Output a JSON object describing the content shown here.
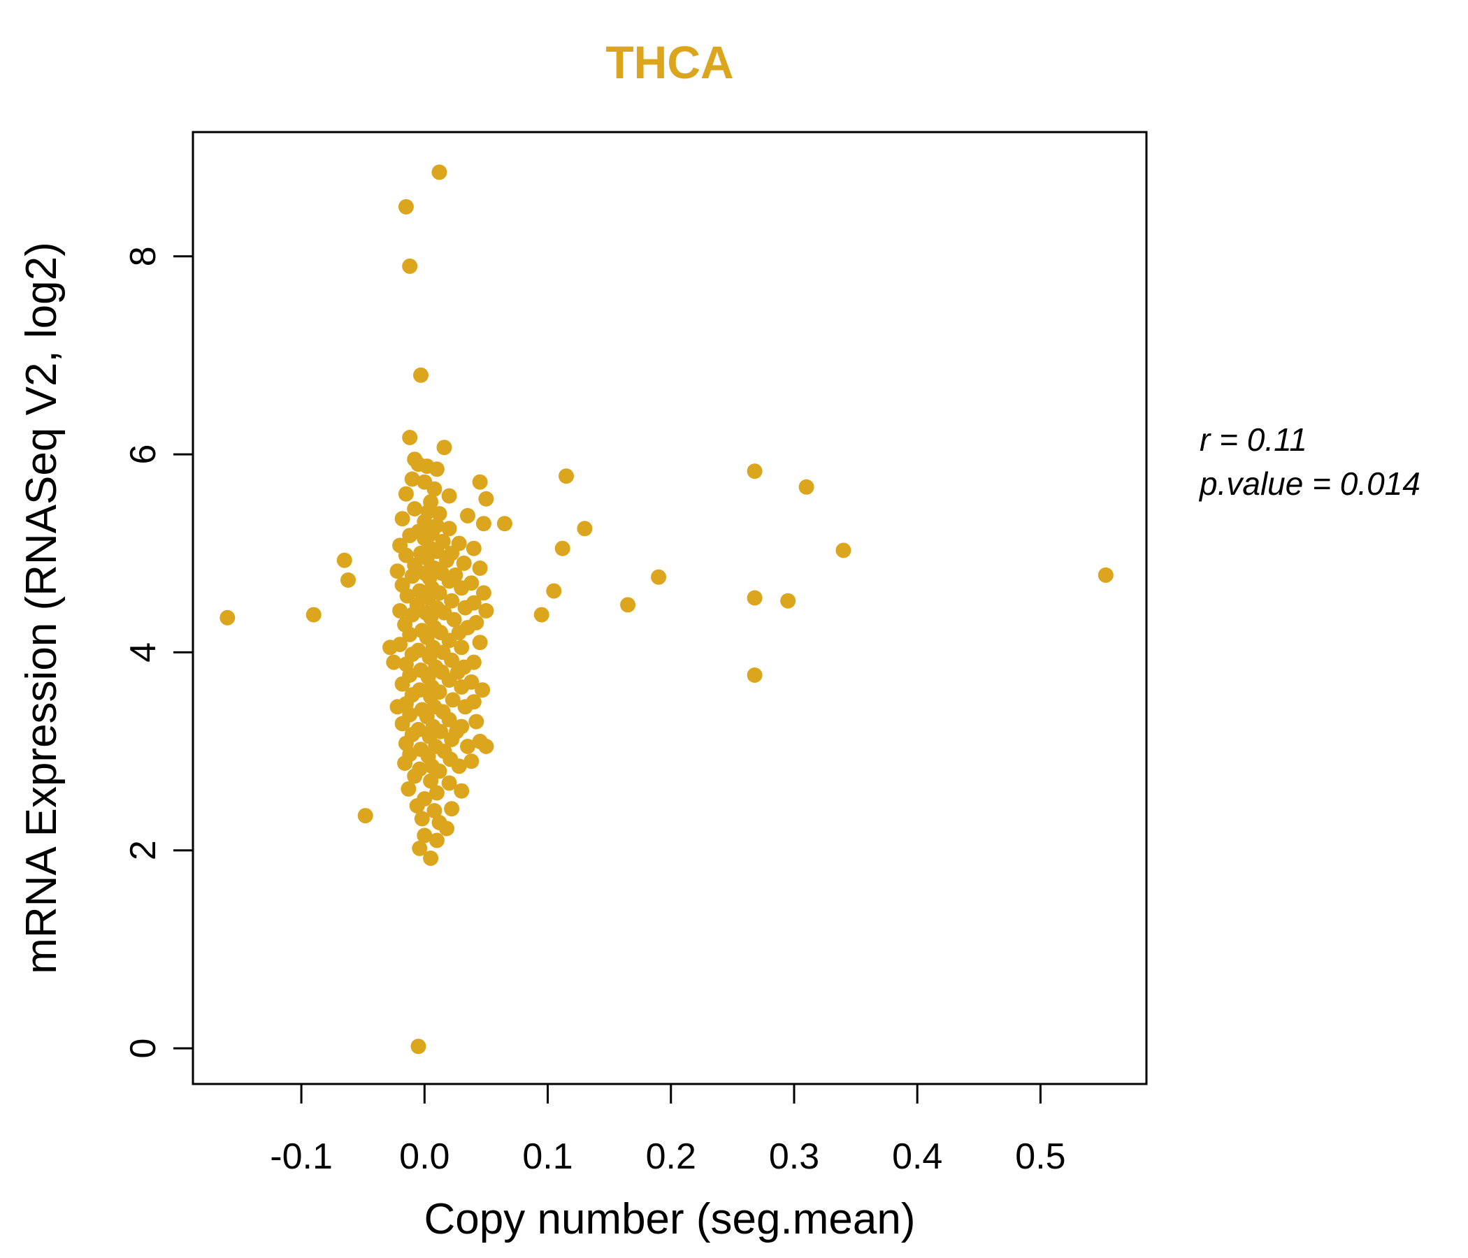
{
  "title": "THCA",
  "accent_color": "#DBA51E",
  "annotation": {
    "r_label": "r = 0.11",
    "p_label": "p.value = 0.014"
  },
  "chart_data": {
    "type": "scatter",
    "title": "THCA",
    "xlabel": "Copy number (seg.mean)",
    "ylabel": "mRNA Expression (RNASeq V2, log2)",
    "xlim": [
      -0.188,
      0.586
    ],
    "ylim": [
      -0.36,
      9.255
    ],
    "grid": false,
    "legend": "none",
    "x_ticks": [
      -0.1,
      0.0,
      0.1,
      0.2,
      0.3,
      0.4,
      0.5
    ],
    "x_tick_labels": [
      "-0.1",
      "0.0",
      "0.1",
      "0.2",
      "0.3",
      "0.4",
      "0.5"
    ],
    "y_ticks": [
      0,
      2,
      4,
      6,
      8
    ],
    "y_tick_labels": [
      "0",
      "2",
      "4",
      "6",
      "8"
    ],
    "point_color": "#DBA51E",
    "stats": {
      "r": 0.11,
      "p_value": 0.014
    },
    "points": [
      [
        0.012,
        8.85
      ],
      [
        -0.015,
        8.5
      ],
      [
        -0.012,
        7.9
      ],
      [
        -0.003,
        6.8
      ],
      [
        -0.005,
        0.02
      ],
      [
        -0.16,
        4.35
      ],
      [
        -0.09,
        4.38
      ],
      [
        -0.065,
        4.93
      ],
      [
        -0.062,
        4.73
      ],
      [
        -0.048,
        2.35
      ],
      [
        0.095,
        4.38
      ],
      [
        0.105,
        4.62
      ],
      [
        0.112,
        5.05
      ],
      [
        0.115,
        5.78
      ],
      [
        0.13,
        5.25
      ],
      [
        0.165,
        4.48
      ],
      [
        0.19,
        4.76
      ],
      [
        0.268,
        5.83
      ],
      [
        0.31,
        5.67
      ],
      [
        0.34,
        5.03
      ],
      [
        0.268,
        4.55
      ],
      [
        0.295,
        4.52
      ],
      [
        0.268,
        3.77
      ],
      [
        0.553,
        4.78
      ],
      [
        0.065,
        5.3
      ],
      [
        0.05,
        5.55
      ],
      [
        -0.012,
        6.17
      ],
      [
        0.016,
        6.07
      ],
      [
        -0.008,
        5.95
      ],
      [
        0.002,
        5.88
      ],
      [
        0.01,
        5.85
      ],
      [
        -0.005,
        5.9
      ],
      [
        -0.01,
        5.75
      ],
      [
        0.0,
        5.72
      ],
      [
        0.045,
        5.72
      ],
      [
        0.008,
        5.65
      ],
      [
        -0.015,
        5.6
      ],
      [
        0.02,
        5.58
      ],
      [
        0.005,
        5.52
      ],
      [
        -0.008,
        5.45
      ],
      [
        0.003,
        5.42
      ],
      [
        0.012,
        5.4
      ],
      [
        0.035,
        5.38
      ],
      [
        -0.018,
        5.35
      ],
      [
        0.0,
        5.32
      ],
      [
        0.048,
        5.3
      ],
      [
        0.01,
        5.28
      ],
      [
        0.02,
        5.25
      ],
      [
        -0.005,
        5.22
      ],
      [
        0.006,
        5.2
      ],
      [
        -0.012,
        5.18
      ],
      [
        0.0,
        5.15
      ],
      [
        0.015,
        5.12
      ],
      [
        0.028,
        5.1
      ],
      [
        -0.02,
        5.08
      ],
      [
        0.005,
        5.05
      ],
      [
        0.04,
        5.05
      ],
      [
        0.01,
        5.02
      ],
      [
        -0.003,
        5.0
      ],
      [
        0.022,
        5.0
      ],
      [
        -0.015,
        4.98
      ],
      [
        0.002,
        4.95
      ],
      [
        0.018,
        4.93
      ],
      [
        0.032,
        4.9
      ],
      [
        -0.008,
        4.88
      ],
      [
        0.008,
        4.85
      ],
      [
        0.045,
        4.85
      ],
      [
        -0.022,
        4.82
      ],
      [
        0.0,
        4.8
      ],
      [
        0.014,
        4.8
      ],
      [
        0.025,
        4.78
      ],
      [
        -0.01,
        4.77
      ],
      [
        0.004,
        4.75
      ],
      [
        0.02,
        4.72
      ],
      [
        0.038,
        4.7
      ],
      [
        -0.018,
        4.68
      ],
      [
        0.006,
        4.65
      ],
      [
        0.03,
        4.65
      ],
      [
        -0.004,
        4.62
      ],
      [
        0.012,
        4.6
      ],
      [
        0.048,
        4.6
      ],
      [
        0.0,
        4.58
      ],
      [
        -0.014,
        4.57
      ],
      [
        0.003,
        4.55
      ],
      [
        0.022,
        4.52
      ],
      [
        0.04,
        4.5
      ],
      [
        -0.006,
        4.48
      ],
      [
        0.01,
        4.45
      ],
      [
        0.033,
        4.45
      ],
      [
        -0.02,
        4.42
      ],
      [
        0.001,
        4.4
      ],
      [
        0.016,
        4.4
      ],
      [
        0.05,
        4.42
      ],
      [
        -0.01,
        4.38
      ],
      [
        0.005,
        4.35
      ],
      [
        0.024,
        4.33
      ],
      [
        0.042,
        4.3
      ],
      [
        -0.016,
        4.28
      ],
      [
        0.008,
        4.25
      ],
      [
        0.035,
        4.25
      ],
      [
        -0.002,
        4.22
      ],
      [
        0.013,
        4.2
      ],
      [
        0.028,
        4.2
      ],
      [
        -0.012,
        4.18
      ],
      [
        0.002,
        4.15
      ],
      [
        0.02,
        4.12
      ],
      [
        0.045,
        4.1
      ],
      [
        -0.02,
        4.08
      ],
      [
        0.007,
        4.05
      ],
      [
        0.03,
        4.05
      ],
      [
        -0.005,
        4.02
      ],
      [
        0.015,
        4.0
      ],
      [
        -0.028,
        4.05
      ],
      [
        -0.01,
        3.98
      ],
      [
        0.004,
        3.95
      ],
      [
        0.022,
        3.92
      ],
      [
        0.04,
        3.9
      ],
      [
        -0.015,
        3.88
      ],
      [
        0.009,
        3.85
      ],
      [
        0.032,
        3.85
      ],
      [
        -0.003,
        3.82
      ],
      [
        0.014,
        3.8
      ],
      [
        0.027,
        3.8
      ],
      [
        -0.025,
        3.9
      ],
      [
        -0.012,
        3.77
      ],
      [
        0.003,
        3.75
      ],
      [
        0.02,
        3.72
      ],
      [
        0.038,
        3.7
      ],
      [
        -0.018,
        3.68
      ],
      [
        0.006,
        3.65
      ],
      [
        0.03,
        3.65
      ],
      [
        -0.004,
        3.62
      ],
      [
        0.012,
        3.6
      ],
      [
        0.047,
        3.62
      ],
      [
        -0.01,
        3.57
      ],
      [
        0.005,
        3.55
      ],
      [
        0.023,
        3.52
      ],
      [
        0.04,
        3.5
      ],
      [
        -0.015,
        3.48
      ],
      [
        0.008,
        3.45
      ],
      [
        0.033,
        3.45
      ],
      [
        -0.002,
        3.42
      ],
      [
        0.015,
        3.4
      ],
      [
        -0.022,
        3.45
      ],
      [
        -0.012,
        3.37
      ],
      [
        0.002,
        3.35
      ],
      [
        0.02,
        3.32
      ],
      [
        0.042,
        3.3
      ],
      [
        -0.018,
        3.28
      ],
      [
        0.007,
        3.25
      ],
      [
        0.03,
        3.25
      ],
      [
        -0.005,
        3.22
      ],
      [
        0.013,
        3.2
      ],
      [
        0.026,
        3.2
      ],
      [
        -0.01,
        3.17
      ],
      [
        0.004,
        3.15
      ],
      [
        0.022,
        3.12
      ],
      [
        0.045,
        3.1
      ],
      [
        -0.015,
        3.08
      ],
      [
        0.009,
        3.05
      ],
      [
        0.035,
        3.05
      ],
      [
        -0.003,
        3.02
      ],
      [
        0.016,
        3.0
      ],
      [
        0.05,
        3.05
      ],
      [
        -0.012,
        2.97
      ],
      [
        0.003,
        2.95
      ],
      [
        0.021,
        2.92
      ],
      [
        0.038,
        2.9
      ],
      [
        -0.016,
        2.88
      ],
      [
        0.006,
        2.85
      ],
      [
        0.028,
        2.85
      ],
      [
        -0.004,
        2.82
      ],
      [
        0.012,
        2.8
      ],
      [
        -0.008,
        2.75
      ],
      [
        0.005,
        2.7
      ],
      [
        0.02,
        2.68
      ],
      [
        -0.013,
        2.62
      ],
      [
        0.01,
        2.58
      ],
      [
        0.03,
        2.6
      ],
      [
        0.0,
        2.52
      ],
      [
        -0.006,
        2.45
      ],
      [
        0.008,
        2.4
      ],
      [
        0.022,
        2.42
      ],
      [
        -0.002,
        2.32
      ],
      [
        0.012,
        2.28
      ],
      [
        0.018,
        2.22
      ],
      [
        0.0,
        2.15
      ],
      [
        0.01,
        2.1
      ],
      [
        -0.004,
        2.02
      ],
      [
        0.005,
        1.92
      ]
    ]
  }
}
